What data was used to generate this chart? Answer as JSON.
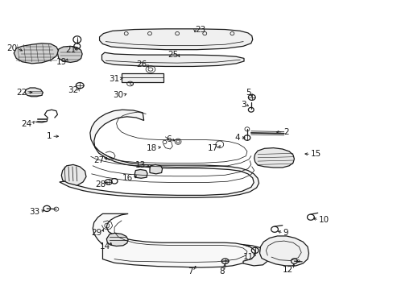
{
  "bg_color": "#ffffff",
  "line_color": "#1a1a1a",
  "figsize": [
    4.89,
    3.6
  ],
  "dpi": 100,
  "label_fontsize": 7.5,
  "labels": {
    "1": [
      0.13,
      0.53,
      0.155,
      0.53
    ],
    "2": [
      0.72,
      0.545,
      0.695,
      0.545
    ],
    "3": [
      0.625,
      0.64,
      0.638,
      0.63
    ],
    "4": [
      0.61,
      0.525,
      0.63,
      0.525
    ],
    "5": [
      0.638,
      0.68,
      0.64,
      0.665
    ],
    "6": [
      0.435,
      0.52,
      0.45,
      0.51
    ],
    "7": [
      0.49,
      0.062,
      0.5,
      0.09
    ],
    "8": [
      0.57,
      0.062,
      0.572,
      0.098
    ],
    "9": [
      0.72,
      0.195,
      0.7,
      0.205
    ],
    "10": [
      0.81,
      0.24,
      0.79,
      0.25
    ],
    "11": [
      0.645,
      0.112,
      0.65,
      0.135
    ],
    "12": [
      0.745,
      0.068,
      0.748,
      0.098
    ],
    "13": [
      0.37,
      0.43,
      0.38,
      0.425
    ],
    "14": [
      0.28,
      0.148,
      0.282,
      0.172
    ],
    "15": [
      0.79,
      0.468,
      0.768,
      0.47
    ],
    "16": [
      0.338,
      0.385,
      0.352,
      0.4
    ],
    "17": [
      0.555,
      0.49,
      0.56,
      0.5
    ],
    "18": [
      0.398,
      0.49,
      0.415,
      0.495
    ],
    "19": [
      0.168,
      0.788,
      0.172,
      0.808
    ],
    "20": [
      0.042,
      0.835,
      0.062,
      0.822
    ],
    "21": [
      0.192,
      0.828,
      0.195,
      0.845
    ],
    "22": [
      0.068,
      0.682,
      0.088,
      0.682
    ],
    "23": [
      0.495,
      0.9,
      0.495,
      0.882
    ],
    "24": [
      0.08,
      0.572,
      0.09,
      0.59
    ],
    "25": [
      0.452,
      0.812,
      0.46,
      0.798
    ],
    "26": [
      0.372,
      0.778,
      0.382,
      0.762
    ],
    "27": [
      0.265,
      0.448,
      0.272,
      0.458
    ],
    "28": [
      0.268,
      0.362,
      0.272,
      0.375
    ],
    "29": [
      0.258,
      0.195,
      0.265,
      0.218
    ],
    "30": [
      0.312,
      0.672,
      0.322,
      0.678
    ],
    "31": [
      0.302,
      0.73,
      0.318,
      0.732
    ],
    "32": [
      0.198,
      0.69,
      0.202,
      0.705
    ],
    "33": [
      0.1,
      0.268,
      0.118,
      0.278
    ]
  }
}
